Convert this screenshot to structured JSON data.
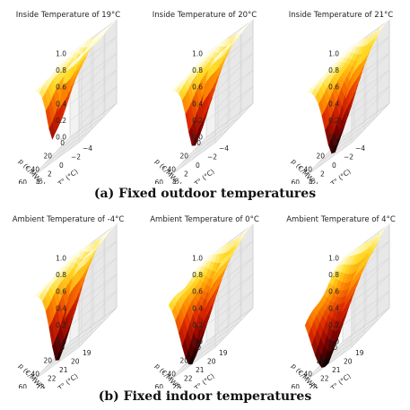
{
  "captions": {
    "top": "(a) Fixed outdoor temperatures",
    "bottom": "(b) Fixed indoor temperatures"
  },
  "chart_data": [
    {
      "type": "surface3d",
      "title": "Inside Temperature of 19°C",
      "xlabel": "p (€/MWh)",
      "ylabel": "T° (°C)",
      "x_ticks": [
        "0",
        "20",
        "40",
        "60"
      ],
      "y_ticks": [
        "4",
        "2",
        "0",
        "−2",
        "−4"
      ],
      "z_ticks": [
        "0.0",
        "0.2",
        "0.4",
        "0.6",
        "0.8",
        "1.0"
      ],
      "zlim": [
        0,
        1
      ],
      "x_range": [
        0,
        60
      ],
      "y_range": [
        4,
        -4
      ],
      "z_min": 0.28,
      "center": 0.45,
      "width": 0.22
    },
    {
      "type": "surface3d",
      "title": "Inside Temperature of 20°C",
      "xlabel": "p (€/MWh)",
      "ylabel": "T° (°C)",
      "x_ticks": [
        "0",
        "20",
        "40",
        "60"
      ],
      "y_ticks": [
        "4",
        "2",
        "0",
        "−2",
        "−4"
      ],
      "z_ticks": [
        "0.0",
        "0.2",
        "0.4",
        "0.6",
        "0.8",
        "1.0"
      ],
      "zlim": [
        0,
        1
      ],
      "x_range": [
        0,
        60
      ],
      "y_range": [
        4,
        -4
      ],
      "z_min": 0.12,
      "center": 0.55,
      "width": 0.26
    },
    {
      "type": "surface3d",
      "title": "Inside Temperature of 21°C",
      "xlabel": "p (€/MWh)",
      "ylabel": "T° (°C)",
      "x_ticks": [
        "0",
        "20",
        "40",
        "60"
      ],
      "y_ticks": [
        "4",
        "2",
        "0",
        "−2",
        "−4"
      ],
      "z_ticks": [
        "0.0",
        "0.2",
        "0.4",
        "0.6",
        "0.8",
        "1.0"
      ],
      "zlim": [
        0,
        1
      ],
      "x_range": [
        0,
        60
      ],
      "y_range": [
        4,
        -4
      ],
      "z_min": 0.0,
      "center": 0.62,
      "width": 0.34
    },
    {
      "type": "surface3d",
      "title": "Ambient Temperature of -4°C",
      "xlabel": "p (€/MWh)",
      "ylabel": "T° (°C)",
      "x_ticks": [
        "0",
        "20",
        "40",
        "60"
      ],
      "y_ticks": [
        "23",
        "22",
        "21",
        "20",
        "19"
      ],
      "z_ticks": [
        "0.0",
        "0.2",
        "0.4",
        "0.6",
        "0.8",
        "1.0"
      ],
      "zlim": [
        0,
        1
      ],
      "x_range": [
        0,
        60
      ],
      "y_range": [
        23,
        19
      ],
      "z_min": 0.0,
      "center": 0.55,
      "width": 0.28
    },
    {
      "type": "surface3d",
      "title": "Ambient Temperature of 0°C",
      "xlabel": "p (€/MWh)",
      "ylabel": "T° (°C)",
      "x_ticks": [
        "0",
        "20",
        "40",
        "60"
      ],
      "y_ticks": [
        "23",
        "22",
        "21",
        "20",
        "19"
      ],
      "z_ticks": [
        "0.0",
        "0.2",
        "0.4",
        "0.6",
        "0.8",
        "1.0"
      ],
      "zlim": [
        0,
        1
      ],
      "x_range": [
        0,
        60
      ],
      "y_range": [
        23,
        19
      ],
      "z_min": 0.0,
      "center": 0.5,
      "width": 0.42
    },
    {
      "type": "surface3d",
      "title": "Ambient Temperature of 4°C",
      "xlabel": "p (€/MWh)",
      "ylabel": "T° (°C)",
      "x_ticks": [
        "0",
        "20",
        "40",
        "60"
      ],
      "y_ticks": [
        "23",
        "22",
        "21",
        "20",
        "19"
      ],
      "z_ticks": [
        "0.0",
        "0.2",
        "0.4",
        "0.6",
        "0.8",
        "1.0"
      ],
      "zlim": [
        0,
        1
      ],
      "x_range": [
        0,
        60
      ],
      "y_range": [
        23,
        19
      ],
      "z_min": 0.0,
      "center": 0.45,
      "width": 0.55
    }
  ]
}
